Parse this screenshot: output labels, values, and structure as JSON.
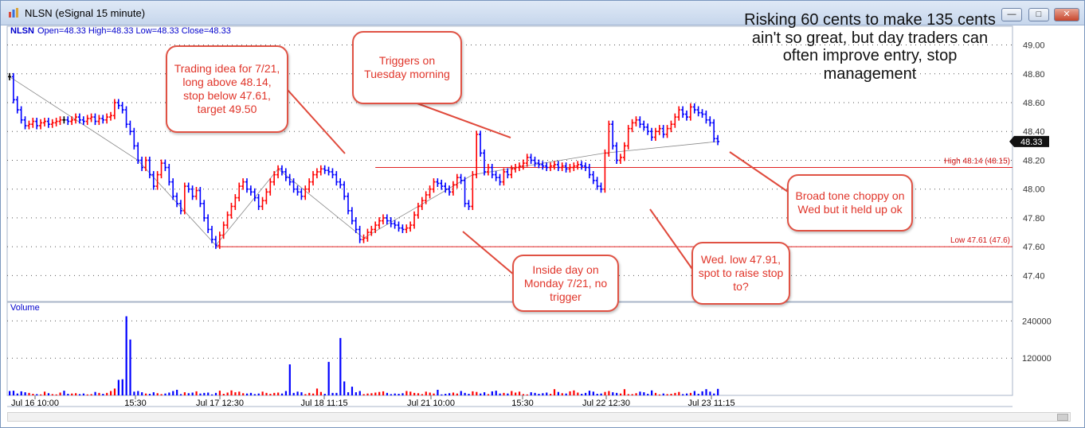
{
  "window": {
    "title": "NLSN (eSignal 15 minute)",
    "buttons": [
      "minimize",
      "maximize",
      "close"
    ]
  },
  "info_line": {
    "symbol": "NLSN",
    "ohlc": "Open=48.33  High=48.33  Low=48.33  Close=48.33"
  },
  "headline": "Risking 60 cents to make 135 cents ain't so great, but day traders can often improve entry, stop management",
  "annotations": {
    "trading_idea": "Trading idea for 7/21, long above 48.14, stop below 47.61, target 49.50",
    "triggers": "Triggers on Tuesday morning",
    "inside_day": "Inside day on Monday 7/21, no trigger",
    "wed_low": "Wed. low 47.91, spot to raise stop to?",
    "broad_tone": "Broad tone choppy on Wed but it held up ok"
  },
  "levels": {
    "high_label": "High 48.14 (48.15)",
    "low_label": "Low 47.61 (47.6)"
  },
  "last_price": "48.33",
  "volume_label": "Volume",
  "colors": {
    "up": "#ff0000",
    "down": "#0000ff",
    "neutral": "#000000",
    "level_line": "#e02020",
    "note_border": "#e05244"
  },
  "chart_data": {
    "type": "line",
    "title": "NLSN (eSignal 15 minute)",
    "price_axis": {
      "ticks": [
        47.4,
        47.6,
        47.8,
        48.0,
        48.2,
        48.4,
        48.6,
        48.8,
        49.0
      ],
      "tick_labels": [
        "47.40",
        "47.60",
        "47.80",
        "48.00",
        "48.20",
        "48.40",
        "48.60",
        "48.80",
        "49.00"
      ],
      "ylim": [
        47.22,
        49.13
      ]
    },
    "volume_axis": {
      "ticks": [
        120000,
        240000
      ],
      "tick_labels": [
        "120000",
        "240000"
      ],
      "ylim": [
        0,
        300000
      ]
    },
    "x_labels": [
      "Jul 16 10:00",
      "15:30",
      "Jul 17 12:30",
      "Jul 18 11:15",
      "Jul 21 10:00",
      "15:30",
      "Jul 22 12:30",
      "Jul 23 11:15"
    ],
    "horizontal_levels": [
      {
        "name": "High 48.14 (48.15)",
        "value": 48.15
      },
      {
        "name": "Low 47.61 (47.6)",
        "value": 47.6
      }
    ],
    "series": [
      {
        "name": "NLSN",
        "values": [
          48.78,
          48.62,
          48.55,
          48.48,
          48.44,
          48.45,
          48.47,
          48.44,
          48.46,
          48.47,
          48.45,
          48.46,
          48.47,
          48.48,
          48.48,
          48.47,
          48.48,
          48.5,
          48.48,
          48.47,
          48.49,
          48.5,
          48.47,
          48.49,
          48.48,
          48.5,
          48.51,
          48.6,
          48.58,
          48.55,
          48.45,
          48.4,
          48.3,
          48.2,
          48.15,
          48.2,
          48.1,
          48.02,
          48.1,
          48.18,
          48.15,
          48.05,
          47.95,
          47.9,
          47.85,
          48.02,
          48.0,
          47.95,
          47.99,
          47.9,
          47.8,
          47.72,
          47.65,
          47.61,
          47.68,
          47.75,
          47.82,
          47.88,
          47.94,
          48.02,
          48.05,
          48.0,
          47.98,
          47.94,
          47.88,
          47.92,
          47.98,
          48.05,
          48.1,
          48.14,
          48.12,
          48.08,
          48.05,
          48.0,
          47.98,
          47.95,
          48.0,
          48.05,
          48.1,
          48.12,
          48.14,
          48.13,
          48.12,
          48.1,
          48.05,
          48.03,
          47.95,
          47.85,
          47.78,
          47.72,
          47.65,
          47.66,
          47.7,
          47.72,
          47.75,
          47.78,
          47.8,
          47.78,
          47.76,
          47.75,
          47.73,
          47.72,
          47.73,
          47.75,
          47.82,
          47.88,
          47.92,
          47.96,
          48.0,
          48.05,
          48.04,
          48.02,
          48.0,
          47.98,
          48.03,
          48.08,
          48.06,
          47.9,
          47.88,
          48.1,
          48.38,
          48.25,
          48.12,
          48.15,
          48.1,
          48.08,
          48.05,
          48.12,
          48.1,
          48.14,
          48.15,
          48.16,
          48.18,
          48.22,
          48.2,
          48.18,
          48.17,
          48.16,
          48.15,
          48.16,
          48.17,
          48.15,
          48.16,
          48.14,
          48.15,
          48.16,
          48.17,
          48.16,
          48.15,
          48.1,
          48.06,
          48.02,
          48.0,
          48.25,
          48.45,
          48.3,
          48.2,
          48.22,
          48.3,
          48.42,
          48.46,
          48.48,
          48.45,
          48.43,
          48.4,
          48.36,
          48.4,
          48.42,
          48.38,
          48.42,
          48.45,
          48.5,
          48.55,
          48.52,
          48.5,
          48.57,
          48.55,
          48.53,
          48.52,
          48.48,
          48.46,
          48.35,
          48.33
        ]
      },
      {
        "name": "Volume",
        "values": [
          14000,
          15000,
          6000,
          13000,
          10000,
          8000,
          5000,
          4000,
          3000,
          12000,
          7000,
          4000,
          3000,
          9000,
          15000,
          5000,
          6000,
          7000,
          4000,
          6000,
          3000,
          4000,
          11000,
          8000,
          5000,
          8000,
          14000,
          22000,
          50000,
          52000,
          255000,
          180000,
          12000,
          14000,
          10000,
          6000,
          5000,
          10000,
          7000,
          4000,
          6000,
          9000,
          14000,
          18000,
          4000,
          10000,
          7000,
          9000,
          13000,
          6000,
          8000,
          9000,
          3000,
          8000,
          15000,
          5000,
          9000,
          16000,
          10000,
          12000,
          7000,
          6000,
          8000,
          4000,
          6000,
          12000,
          8000,
          5000,
          8000,
          9000,
          6000,
          14000,
          100000,
          8000,
          12000,
          10000,
          4000,
          8000,
          6000,
          22000,
          11000,
          5000,
          108000,
          8000,
          8000,
          185000,
          45000,
          10000,
          28000,
          10000,
          14000,
          4000,
          6000,
          7000,
          9000,
          11000,
          13000,
          8000,
          4000,
          6000,
          5000,
          7000,
          14000,
          12000,
          8000,
          7000,
          4000,
          12000,
          9000,
          6000,
          18000,
          3000,
          5000,
          7000,
          9000,
          6000,
          14000,
          8000,
          5000,
          13000,
          11000,
          6000,
          10000,
          4000,
          13000,
          15000,
          6000,
          8000,
          6000,
          14000,
          9000,
          12000,
          4000,
          3000,
          10000,
          8000,
          5000,
          7000,
          9000,
          5000,
          20000,
          11000,
          7000,
          6000,
          13000,
          16000,
          9000,
          5000,
          8000,
          15000,
          12000,
          5000,
          6000,
          11000,
          14000,
          10000,
          8000,
          6000,
          20000,
          4000,
          4000,
          7000,
          12000,
          10000,
          5000,
          16000,
          8000,
          3000,
          6000,
          4000,
          5000,
          8000,
          11000,
          4000,
          6000,
          8000,
          14000,
          5000,
          13000,
          20000,
          12000,
          6000,
          21000,
          7000,
          15000,
          8000,
          60000,
          15000,
          6000,
          22000,
          6000
        ]
      }
    ]
  }
}
